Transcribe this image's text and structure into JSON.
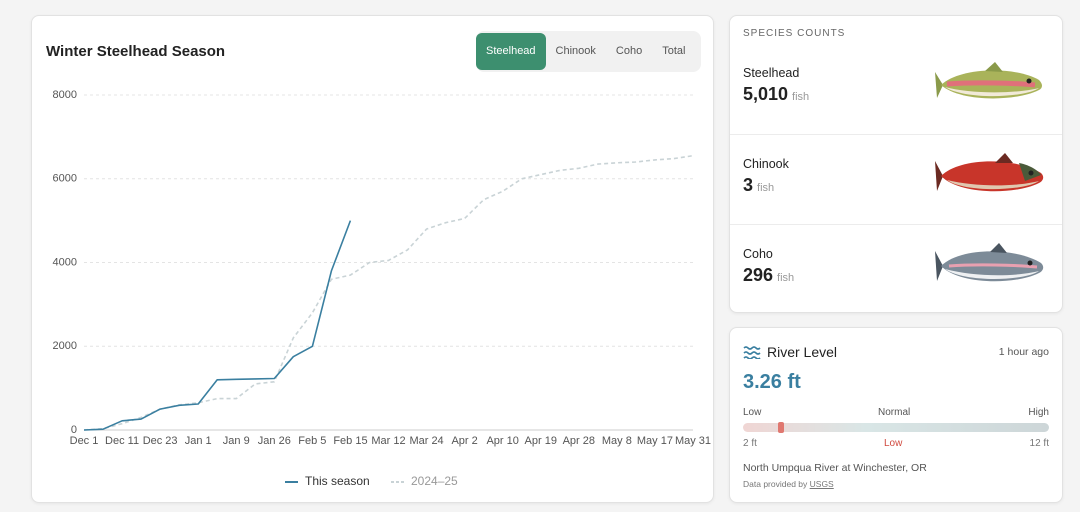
{
  "chart_data": {
    "type": "line",
    "title": "Winter Steelhead Season",
    "categories": [
      "Dec 1",
      null,
      "Dec 11",
      null,
      "Dec 23",
      null,
      "Jan 1",
      null,
      "Jan 9",
      null,
      "Jan 26",
      null,
      "Feb 5",
      null,
      "Feb 15",
      null,
      "Mar 12",
      null,
      "Mar 24",
      null,
      "Apr 2",
      null,
      "Apr 10",
      null,
      "Apr 19",
      null,
      "Apr 28",
      null,
      "May 8",
      null,
      "May 17",
      null,
      "May 31"
    ],
    "series": [
      {
        "name": "This season",
        "color": "#3a7fa0",
        "dashed": false,
        "values": [
          0,
          20,
          220,
          260,
          500,
          590,
          620,
          1200,
          1210,
          1220,
          1230,
          1750,
          2000,
          3800,
          5000,
          null,
          null,
          null,
          null,
          null,
          null,
          null,
          null,
          null,
          null,
          null,
          null,
          null,
          null,
          null,
          null,
          null,
          null
        ]
      },
      {
        "name": "2024–25",
        "color": "#c9d3d6",
        "dashed": true,
        "values": [
          0,
          30,
          150,
          300,
          500,
          600,
          650,
          750,
          750,
          1100,
          1150,
          2200,
          2800,
          3600,
          3700,
          4000,
          4050,
          4300,
          4800,
          4950,
          5050,
          5500,
          5700,
          6000,
          6100,
          6200,
          6250,
          6350,
          6380,
          6400,
          6450,
          6480,
          6550
        ]
      }
    ],
    "ylim": [
      0,
      8000
    ],
    "yticks": [
      0,
      2000,
      4000,
      6000,
      8000
    ],
    "grid": true
  },
  "tabs": [
    "Steelhead",
    "Chinook",
    "Coho",
    "Total"
  ],
  "species": {
    "heading": "SPECIES COUNTS",
    "items": [
      {
        "name": "Steelhead",
        "count": "5,010",
        "unit": "fish"
      },
      {
        "name": "Chinook",
        "count": "3",
        "unit": "fish"
      },
      {
        "name": "Coho",
        "count": "296",
        "unit": "fish"
      }
    ]
  },
  "river": {
    "title": "River Level",
    "updated": "1 hour ago",
    "level": "3.26 ft",
    "scale": {
      "low": "Low",
      "mid": "Normal",
      "high": "High",
      "min": "2 ft",
      "status": "Low",
      "max": "12 ft"
    },
    "location": "North Umpqua River at Winchester, OR",
    "credit": "Data provided by",
    "source": "USGS"
  }
}
